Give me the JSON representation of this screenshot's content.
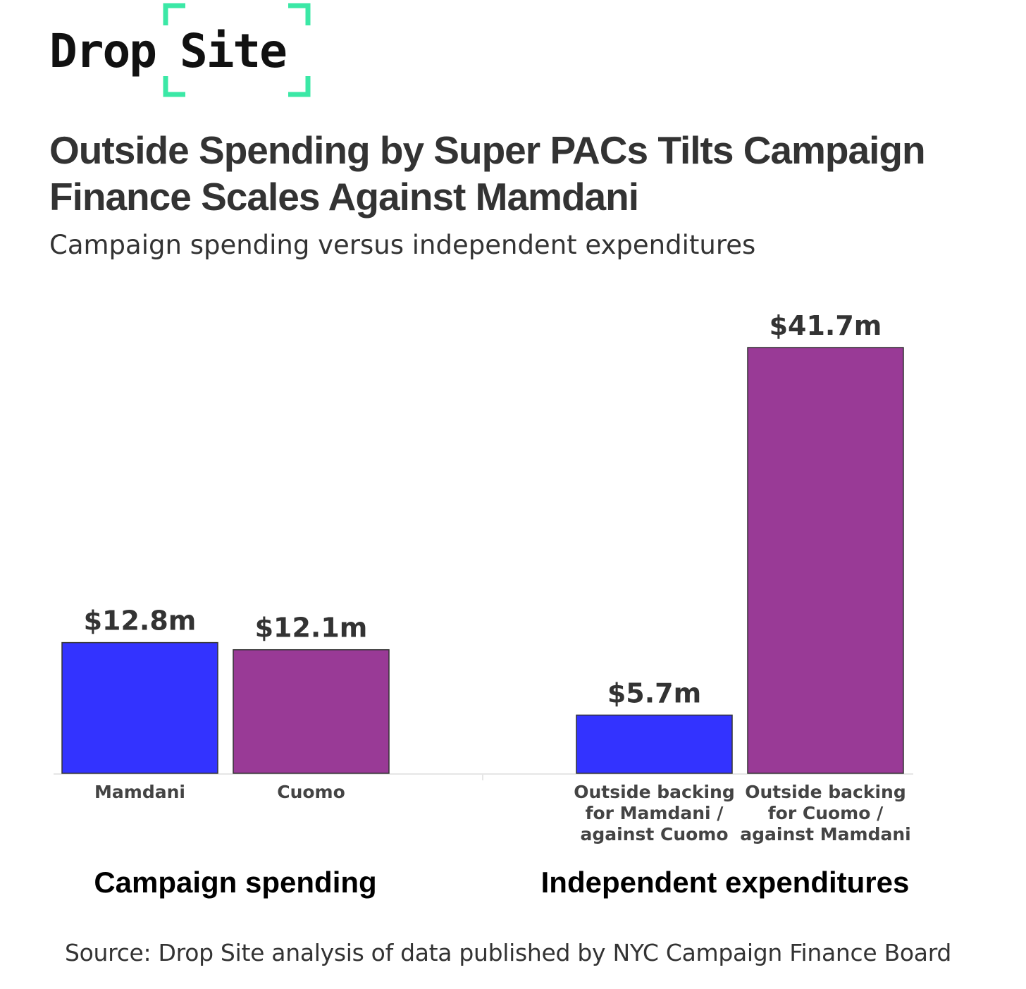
{
  "brand": {
    "name_left": "Drop",
    "name_right": "Site",
    "accent_color": "#3be8a6"
  },
  "title": "Outside Spending by Super PACs Tilts Campaign Finance Scales Against Mamdani",
  "subtitle": "Campaign spending versus independent expenditures",
  "source": "Source: Drop Site analysis of data published by NYC Campaign Finance Board",
  "chart_data": {
    "type": "bar",
    "title": "Outside Spending by Super PACs Tilts Campaign Finance Scales Against Mamdani",
    "subtitle": "Campaign spending versus independent expenditures",
    "unit": "$ millions",
    "ylim": [
      0,
      41.7
    ],
    "grid": false,
    "groups": [
      {
        "name": "Campaign spending",
        "bars": [
          {
            "label": [
              "Mamdani"
            ],
            "value": 12.8,
            "value_label": "$12.8m",
            "color": "#3333ff"
          },
          {
            "label": [
              "Cuomo"
            ],
            "value": 12.1,
            "value_label": "$12.1m",
            "color": "#993a96"
          }
        ]
      },
      {
        "name": "Independent expenditures",
        "bars": [
          {
            "label": [
              "Outside backing",
              "for Mamdani /",
              "against Cuomo"
            ],
            "value": 5.7,
            "value_label": "$5.7m",
            "color": "#3333ff"
          },
          {
            "label": [
              "Outside backing",
              "for Cuomo /",
              "against Mamdani"
            ],
            "value": 41.7,
            "value_label": "$41.7m",
            "color": "#993a96"
          }
        ]
      }
    ]
  }
}
